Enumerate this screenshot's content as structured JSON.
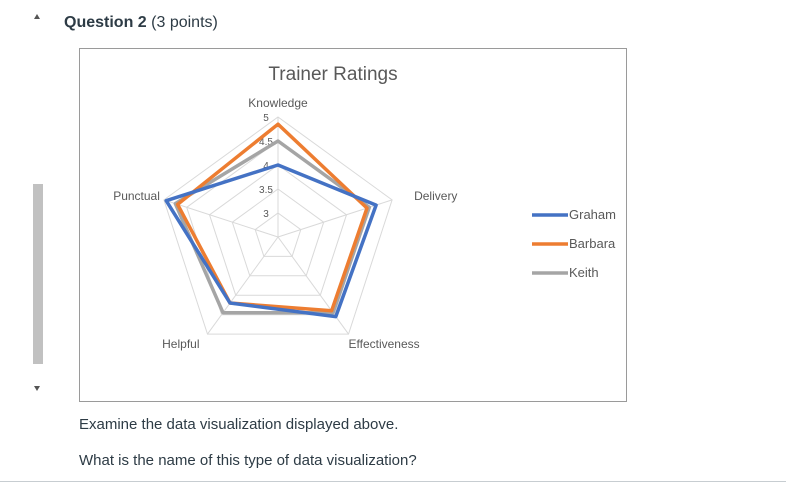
{
  "question": {
    "title": "Question 2",
    "points": "(3 points)"
  },
  "prompt": {
    "line1": "Examine the data visualization displayed above.",
    "line2": "What is the name of this type of data visualization?"
  },
  "chart_data": {
    "type": "radar",
    "title": "Trainer Ratings",
    "axes": [
      "Knowledge",
      "Delivery",
      "Effectiveness",
      "Helpful",
      "Punctual"
    ],
    "range": [
      2.5,
      5
    ],
    "tick_values": [
      3,
      3.5,
      4,
      4.5,
      5
    ],
    "tick_labels": [
      "3",
      "3.5",
      "4",
      "4.5",
      "5"
    ],
    "series": [
      {
        "name": "Graham",
        "color": "#4472c4",
        "values": [
          4.0,
          4.65,
          4.55,
          4.2,
          4.95
        ]
      },
      {
        "name": "Barbara",
        "color": "#ed7d31",
        "values": [
          4.85,
          4.45,
          4.4,
          4.2,
          4.7
        ]
      },
      {
        "name": "Keith",
        "color": "#a5a5a5",
        "values": [
          4.5,
          4.5,
          4.45,
          4.45,
          4.75
        ]
      }
    ],
    "legend_position": "right",
    "grid": true
  }
}
